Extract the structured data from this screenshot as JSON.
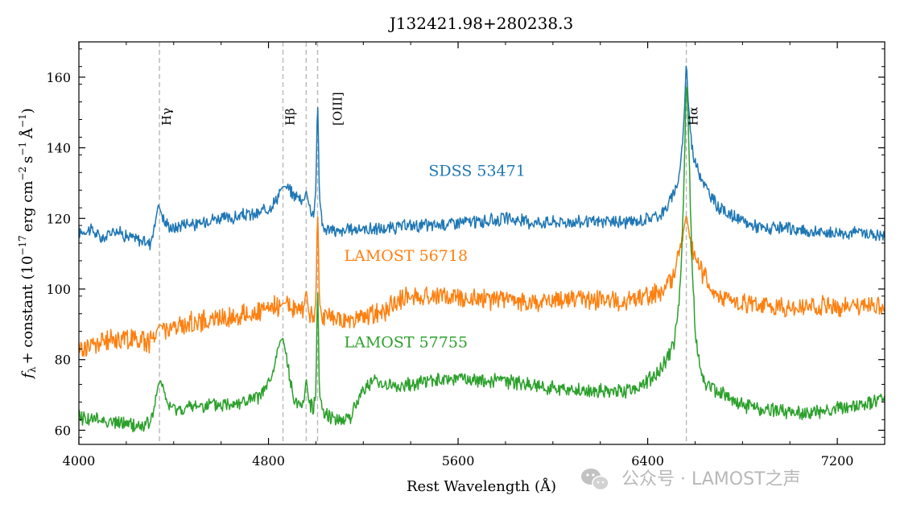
{
  "watermark": {
    "text": "公众号 · LAMOST之声",
    "icon": "wechat-icon"
  },
  "chart_data": {
    "type": "line",
    "title": "J132421.98+280238.3",
    "xlabel": "Rest Wavelength (Å)",
    "ylabel": "f_λ + constant (10^{-17} erg cm^{-2} s^{-1} Å^{-1})",
    "ylabel_parts": {
      "f": "f",
      "lambda": "λ",
      "plus": "+ constant (10",
      "exp1": "−17",
      "erg": "erg cm",
      "exp2": "−2",
      "s": "s",
      "exp3": "−1",
      "angstrom": "Å",
      "exp4": "−1",
      "close": ")"
    },
    "xlim": [
      4000,
      7400
    ],
    "ylim": [
      56,
      170
    ],
    "xticks": [
      4000,
      4800,
      5600,
      6400,
      7200
    ],
    "yticks": [
      60,
      80,
      100,
      120,
      140,
      160
    ],
    "xtick_labels": [
      "4000",
      "4800",
      "5600",
      "6400",
      "7200"
    ],
    "ytick_labels": [
      "60",
      "80",
      "100",
      "120",
      "140",
      "160"
    ],
    "grid": false,
    "emission_lines": [
      {
        "label": "Hγ",
        "wavelength": 4340,
        "name": "line-label-hgamma"
      },
      {
        "label": "Hβ",
        "wavelength": 4861,
        "name": "line-label-hbeta"
      },
      {
        "label": "",
        "wavelength": 4959,
        "name": ""
      },
      {
        "label": "[OIII]",
        "wavelength": 5007,
        "name": "line-label-oiii"
      },
      {
        "label": "Hα",
        "wavelength": 6563,
        "name": "line-label-halpha"
      }
    ],
    "series": [
      {
        "name": "SDSS 53471",
        "color": "#1f77b4",
        "label_at": [
          5680,
          132
        ],
        "x": [
          4000,
          4050,
          4100,
          4150,
          4200,
          4250,
          4300,
          4320,
          4335,
          4345,
          4360,
          4380,
          4400,
          4450,
          4500,
          4550,
          4600,
          4650,
          4700,
          4750,
          4800,
          4830,
          4850,
          4861,
          4875,
          4900,
          4930,
          4950,
          4959,
          4970,
          4990,
          5000,
          5007,
          5015,
          5030,
          5060,
          5100,
          5150,
          5200,
          5300,
          5400,
          5500,
          5600,
          5700,
          5800,
          5900,
          6000,
          6100,
          6200,
          6300,
          6350,
          6400,
          6450,
          6480,
          6510,
          6530,
          6545,
          6555,
          6563,
          6570,
          6585,
          6600,
          6625,
          6650,
          6700,
          6750,
          6800,
          6900,
          7000,
          7100,
          7200,
          7300,
          7400
        ],
        "y": [
          116,
          117,
          114,
          117,
          115,
          114,
          113,
          118,
          124,
          122,
          119,
          118,
          117,
          119,
          118,
          120,
          120,
          120,
          121,
          121,
          123,
          125,
          128,
          129,
          129,
          127,
          126,
          125,
          128,
          124,
          121,
          128,
          155,
          126,
          117,
          117,
          116,
          117,
          117,
          117,
          118,
          118,
          119,
          119,
          120,
          119,
          119,
          119,
          119,
          119,
          119,
          120,
          121,
          123,
          127,
          131,
          140,
          150,
          165,
          154,
          141,
          136,
          132,
          128,
          123,
          121,
          119,
          117,
          117,
          116,
          116,
          116,
          115
        ],
        "noise": 1.6
      },
      {
        "name": "LAMOST 56718",
        "color": "#ff7f0e",
        "label_at": [
          5380,
          108
        ],
        "x": [
          4000,
          4050,
          4100,
          4150,
          4200,
          4250,
          4300,
          4320,
          4340,
          4360,
          4400,
          4450,
          4500,
          4550,
          4600,
          4650,
          4700,
          4750,
          4800,
          4830,
          4850,
          4861,
          4875,
          4900,
          4930,
          4950,
          4959,
          4970,
          4990,
          5000,
          5007,
          5015,
          5030,
          5060,
          5100,
          5150,
          5200,
          5250,
          5300,
          5350,
          5400,
          5500,
          5600,
          5700,
          5800,
          5900,
          6000,
          6100,
          6200,
          6300,
          6350,
          6400,
          6450,
          6480,
          6510,
          6530,
          6545,
          6555,
          6563,
          6570,
          6585,
          6600,
          6625,
          6650,
          6700,
          6750,
          6800,
          6900,
          7000,
          7100,
          7200,
          7300,
          7400
        ],
        "y": [
          83,
          84,
          85,
          86,
          86,
          86,
          85,
          87,
          90,
          89,
          89,
          90,
          91,
          91,
          92,
          92,
          93,
          93,
          94,
          95,
          95,
          96,
          96,
          95,
          94,
          95,
          100,
          93,
          92,
          96,
          124,
          96,
          92,
          92,
          91,
          91,
          92,
          93,
          94,
          97,
          98,
          98,
          98,
          97,
          97,
          96,
          97,
          97,
          97,
          96,
          97,
          98,
          99,
          101,
          104,
          110,
          114,
          118,
          121,
          118,
          112,
          108,
          105,
          103,
          98,
          97,
          96,
          95,
          95,
          95,
          95,
          95,
          96
        ],
        "noise": 2.6
      },
      {
        "name": "LAMOST 57755",
        "color": "#2ca02c",
        "label_at": [
          5380,
          83.5
        ],
        "x": [
          4000,
          4050,
          4100,
          4150,
          4200,
          4250,
          4300,
          4320,
          4335,
          4345,
          4360,
          4380,
          4400,
          4450,
          4500,
          4550,
          4600,
          4650,
          4700,
          4750,
          4780,
          4810,
          4830,
          4845,
          4861,
          4875,
          4890,
          4910,
          4930,
          4950,
          4959,
          4970,
          4990,
          5000,
          5007,
          5015,
          5030,
          5060,
          5100,
          5150,
          5200,
          5250,
          5300,
          5350,
          5400,
          5450,
          5500,
          5550,
          5600,
          5650,
          5700,
          5800,
          5900,
          6000,
          6100,
          6200,
          6300,
          6350,
          6400,
          6450,
          6480,
          6510,
          6530,
          6545,
          6555,
          6563,
          6570,
          6585,
          6600,
          6625,
          6650,
          6700,
          6750,
          6800,
          6900,
          7000,
          7100,
          7200,
          7300,
          7400
        ],
        "y": [
          64,
          63,
          63,
          62,
          62,
          61,
          62,
          67,
          73,
          74,
          70,
          67,
          66,
          66,
          67,
          67,
          67,
          68,
          68,
          69,
          71,
          74,
          79,
          85,
          86,
          81,
          74,
          69,
          67,
          68,
          75,
          68,
          66,
          70,
          103,
          70,
          66,
          64,
          63,
          64,
          72,
          74,
          73,
          72,
          73,
          74,
          74,
          74,
          75,
          74,
          74,
          74,
          73,
          72,
          71,
          71,
          71,
          72,
          74,
          77,
          80,
          84,
          95,
          112,
          135,
          160,
          150,
          112,
          88,
          76,
          73,
          71,
          69,
          67,
          66,
          65,
          65,
          66,
          67,
          69
        ],
        "noise": 1.8
      }
    ]
  }
}
